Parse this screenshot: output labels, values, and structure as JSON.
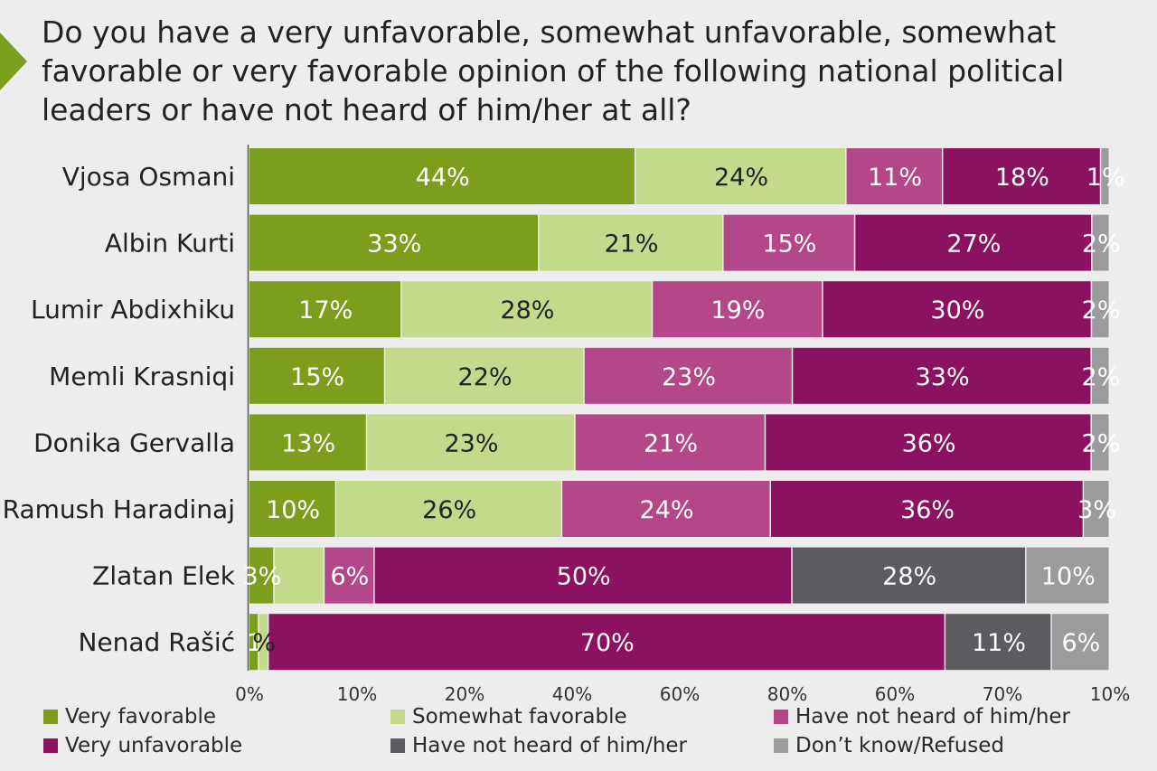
{
  "title": "Do you have a very unfavorable, somewhat unfavorable, somewhat favorable or very favorable opinion of the following national political leaders or have not heard of him/her at all?",
  "chart_data": {
    "type": "bar",
    "orientation": "horizontal",
    "stacked": true,
    "title": "Do you have a very unfavorable, somewhat unfavorable, somewhat favorable or very favorable opinion of the following national political leaders or have not heard of him/her at all?",
    "categories": [
      "Vjosa Osmani",
      "Albin Kurti",
      "Lumir Abdixhiku",
      "Memli Krasniqi",
      "Donika Gervalla",
      "Ramush Haradinaj",
      "Zlatan Elek",
      "Nenad Rašić"
    ],
    "x_ticks": [
      "0%",
      "10%",
      "20%",
      "40%",
      "60%",
      "80%",
      "60%",
      "70%",
      "10%"
    ],
    "series": [
      {
        "name": "Very favorable",
        "color": "#7c9e1c",
        "text_color": "#ffffff",
        "values": [
          44,
          33,
          17,
          15,
          13,
          10,
          3,
          1
        ],
        "labels": [
          "44%",
          "33%",
          "17%",
          "15%",
          "13%",
          "10%",
          "3%",
          "1"
        ]
      },
      {
        "name": "Somewhat favorable",
        "color": "#c3d98b",
        "text_color": "#222222",
        "values": [
          24,
          21,
          28,
          22,
          23,
          26,
          6,
          1
        ],
        "labels": [
          "24%",
          "21%",
          "28%",
          "22%",
          "23%",
          "26%",
          "",
          "%"
        ]
      },
      {
        "name": "Have not heard of him/her",
        "color": "#b4468a",
        "text_color": "#ffffff",
        "values": [
          11,
          15,
          19,
          23,
          21,
          24,
          6,
          0
        ],
        "labels": [
          "11%",
          "15%",
          "19%",
          "23%",
          "21%",
          "24%",
          "6%",
          ""
        ]
      },
      {
        "name": "Very unfavorable",
        "color": "#8b1260",
        "text_color": "#ffffff",
        "values": [
          18,
          27,
          30,
          33,
          36,
          36,
          50,
          70
        ],
        "labels": [
          "18%",
          "27%",
          "30%",
          "33%",
          "36%",
          "36%",
          "50%",
          "70%"
        ]
      },
      {
        "name": "Have not heard of him/her",
        "color": "#5c5c60",
        "text_color": "#ffffff",
        "values": [
          0,
          0,
          0,
          0,
          0,
          0,
          28,
          11
        ],
        "labels": [
          "",
          "",
          "",
          "",
          "",
          "",
          "28%",
          "11%"
        ]
      },
      {
        "name": "Don’t know/Refused",
        "color": "#9b9b9d",
        "text_color": "#ffffff",
        "values": [
          1,
          2,
          2,
          2,
          2,
          3,
          10,
          6
        ],
        "labels": [
          "1%",
          "2%",
          "2%",
          "2%",
          "2%",
          "3%",
          "10%",
          "6%"
        ]
      }
    ]
  },
  "legend": {
    "items": [
      {
        "label": "Very favorable",
        "color": "#7c9e1c"
      },
      {
        "label": "Somewhat favorable",
        "color": "#c3d98b"
      },
      {
        "label": "Have not heard of him/her",
        "color": "#b4468a"
      },
      {
        "label": "Very unfavorable",
        "color": "#8b1260"
      },
      {
        "label": "Have not heard of him/her",
        "color": "#5c5c60"
      },
      {
        "label": "Don’t know/Refused",
        "color": "#9b9b9d"
      }
    ]
  }
}
